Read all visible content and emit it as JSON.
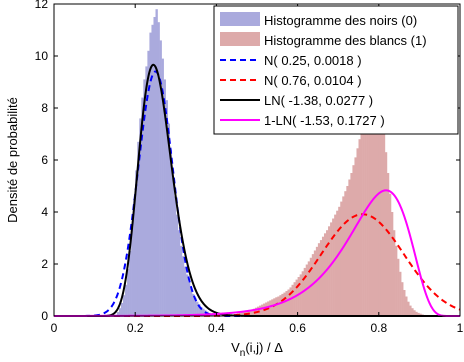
{
  "chart_data": {
    "type": "area",
    "title": "",
    "xlabel": "V_n(i,j) / Δ",
    "ylabel": "Densité de probabilité",
    "xlim": [
      0,
      1
    ],
    "ylim": [
      0,
      12
    ],
    "xticks": [
      "0",
      "0.2",
      "0.4",
      "0.6",
      "0.8",
      "1"
    ],
    "yticks": [
      "0",
      "2",
      "4",
      "6",
      "8",
      "10",
      "12"
    ],
    "grid": false,
    "legend_position": "top-right",
    "histograms": [
      {
        "name": "Histogramme des noirs (0)",
        "color": "#aaaadd",
        "bin_width": 0.005,
        "x": [
          0.15,
          0.155,
          0.16,
          0.165,
          0.17,
          0.175,
          0.18,
          0.185,
          0.19,
          0.195,
          0.2,
          0.205,
          0.21,
          0.215,
          0.22,
          0.225,
          0.23,
          0.235,
          0.24,
          0.245,
          0.25,
          0.255,
          0.26,
          0.265,
          0.27,
          0.275,
          0.28,
          0.285,
          0.29,
          0.295,
          0.3,
          0.305,
          0.31,
          0.315,
          0.32,
          0.325,
          0.33,
          0.335,
          0.34,
          0.345,
          0.35,
          0.355,
          0.36,
          0.365,
          0.37,
          0.375,
          0.38,
          0.385,
          0.39,
          0.395,
          0.4
        ],
        "values": [
          0.05,
          0.15,
          0.3,
          0.5,
          0.8,
          1.2,
          1.8,
          2.5,
          3.4,
          4.5,
          5.6,
          6.7,
          7.6,
          8.4,
          9.1,
          9.6,
          10.2,
          10.9,
          11.2,
          11.5,
          11.8,
          11.3,
          10.6,
          9.9,
          9.1,
          8.3,
          7.4,
          6.4,
          5.3,
          4.6,
          3.9,
          3.3,
          2.7,
          2.3,
          1.9,
          1.6,
          1.3,
          1.05,
          0.85,
          0.7,
          0.55,
          0.45,
          0.35,
          0.28,
          0.22,
          0.17,
          0.12,
          0.09,
          0.06,
          0.04,
          0.02
        ]
      },
      {
        "name": "Histogramme des blancs (1)",
        "color": "#ddaaaa",
        "bin_width": 0.005,
        "x": [
          0.45,
          0.455,
          0.46,
          0.465,
          0.47,
          0.475,
          0.48,
          0.485,
          0.49,
          0.495,
          0.5,
          0.505,
          0.51,
          0.515,
          0.52,
          0.525,
          0.53,
          0.535,
          0.54,
          0.545,
          0.55,
          0.555,
          0.56,
          0.565,
          0.57,
          0.575,
          0.58,
          0.585,
          0.59,
          0.595,
          0.6,
          0.605,
          0.61,
          0.615,
          0.62,
          0.625,
          0.63,
          0.635,
          0.64,
          0.645,
          0.65,
          0.655,
          0.66,
          0.665,
          0.67,
          0.675,
          0.68,
          0.685,
          0.69,
          0.695,
          0.7,
          0.705,
          0.71,
          0.715,
          0.72,
          0.725,
          0.73,
          0.735,
          0.74,
          0.745,
          0.75,
          0.755,
          0.76,
          0.765,
          0.77,
          0.775,
          0.78,
          0.785,
          0.79,
          0.795,
          0.8,
          0.805,
          0.81,
          0.815,
          0.82,
          0.825,
          0.83,
          0.835,
          0.84,
          0.845,
          0.85,
          0.855,
          0.86,
          0.865,
          0.87,
          0.875,
          0.88,
          0.885,
          0.89,
          0.895,
          0.9,
          0.905,
          0.91,
          0.915,
          0.92,
          0.925,
          0.93,
          0.935,
          0.94,
          0.945,
          0.95
        ],
        "values": [
          0.1,
          0.12,
          0.14,
          0.16,
          0.18,
          0.2,
          0.22,
          0.25,
          0.28,
          0.32,
          0.36,
          0.4,
          0.44,
          0.48,
          0.52,
          0.56,
          0.6,
          0.64,
          0.68,
          0.72,
          0.75,
          0.8,
          0.85,
          0.9,
          0.96,
          1.02,
          1.1,
          1.2,
          1.3,
          1.4,
          1.5,
          1.6,
          1.72,
          1.85,
          1.98,
          2.1,
          2.24,
          2.38,
          2.52,
          2.66,
          2.8,
          2.92,
          3.05,
          3.18,
          3.3,
          3.45,
          3.6,
          3.75,
          3.9,
          4.05,
          4.2,
          4.4,
          4.6,
          4.8,
          5.0,
          5.25,
          5.5,
          5.8,
          6.1,
          6.45,
          6.8,
          7.2,
          7.6,
          8.0,
          8.4,
          8.8,
          9.2,
          9.35,
          9.1,
          8.7,
          8.2,
          7.6,
          7.0,
          6.3,
          5.5,
          4.7,
          4.0,
          3.3,
          2.7,
          2.2,
          1.7,
          1.3,
          1.0,
          0.75,
          0.55,
          0.4,
          0.3,
          0.22,
          0.16,
          0.12,
          0.09,
          0.06,
          0.04,
          0.03,
          0.02,
          0.015,
          0.01,
          0.008,
          0.006,
          0.004,
          0.002
        ]
      }
    ],
    "series": [
      {
        "name": "N( 0.25, 0.0018 )",
        "color": "#0000ff",
        "dash": "dashed",
        "dist": "normal",
        "mu": 0.25,
        "var": 0.0018
      },
      {
        "name": "N( 0.76, 0.0104 )",
        "color": "#ff0000",
        "dash": "dashed",
        "dist": "normal",
        "mu": 0.76,
        "var": 0.0104
      },
      {
        "name": "LN( -1.38, 0.0277 )",
        "color": "#000000",
        "dash": "solid",
        "dist": "lognormal",
        "mu": -1.38,
        "var": 0.0277
      },
      {
        "name": "1-LN( -1.53, 0.1727 )",
        "color": "#ff00ff",
        "dash": "solid",
        "dist": "one_minus_lognormal",
        "mu": -1.53,
        "var": 0.1727
      }
    ]
  }
}
